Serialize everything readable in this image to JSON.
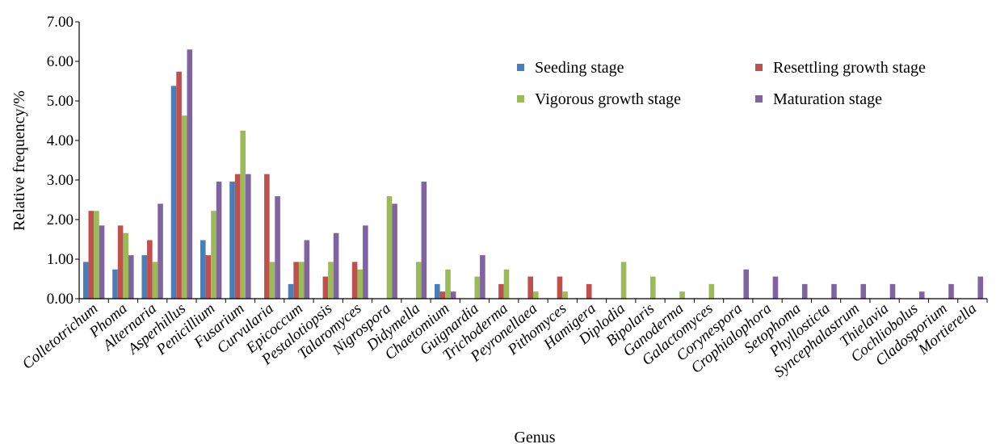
{
  "chart_data": {
    "type": "bar",
    "xlabel": "Genus",
    "ylabel": "Relative frequency/%",
    "ylim": [
      0,
      7
    ],
    "yticks": [
      "0.00",
      "1.00",
      "2.00",
      "3.00",
      "4.00",
      "5.00",
      "6.00",
      "7.00"
    ],
    "grid": false,
    "legend_position": "top-right",
    "categories": [
      "Colletotrichum",
      "Phoma",
      "Alternaria",
      "Asperhillus",
      "Penicillium",
      "Fusarium",
      "Curvularia",
      "Epicoccum",
      "Pestalotiopsis",
      "Talaromyces",
      "Nigrospora",
      "Didymella",
      "Chaetomium",
      "Guignardia",
      "Trichoderma",
      "Peyronellaea",
      "Pithomyces",
      "Hamigera",
      "Diplodia",
      "Bipolaris",
      "Ganoderma",
      "Galactomyces",
      "Corynespora",
      "Crophialophora",
      "Setophoma",
      "Phyllosticta",
      "Syncephalastrum",
      "Thielavia",
      "Cochliobolus",
      "Cladosporium",
      "Mortierella"
    ],
    "series": [
      {
        "name": "Seeding stage",
        "color": "#4a7ebb",
        "values": [
          0.93,
          0.74,
          1.1,
          5.38,
          1.48,
          2.96,
          0,
          0.37,
          0,
          0,
          0,
          0,
          0.37,
          0,
          0,
          0,
          0,
          0,
          0,
          0,
          0,
          0,
          0,
          0,
          0,
          0,
          0,
          0,
          0,
          0,
          0
        ]
      },
      {
        "name": "Resettling growth stage",
        "color": "#c0504d",
        "values": [
          2.22,
          1.85,
          1.48,
          5.74,
          1.1,
          3.15,
          3.15,
          0.93,
          0.56,
          0.93,
          0,
          0,
          0.18,
          0,
          0.37,
          0.56,
          0.56,
          0.37,
          0,
          0,
          0,
          0,
          0,
          0,
          0,
          0,
          0,
          0,
          0,
          0,
          0
        ]
      },
      {
        "name": "Vigorous growth stage",
        "color": "#9bbb59",
        "values": [
          2.22,
          1.66,
          0.93,
          4.63,
          2.22,
          4.25,
          0.93,
          0.93,
          0.93,
          0.74,
          2.59,
          0.93,
          0.74,
          0.56,
          0.74,
          0.18,
          0.18,
          0,
          0.93,
          0.56,
          0.18,
          0.37,
          0,
          0,
          0,
          0,
          0,
          0,
          0,
          0,
          0
        ]
      },
      {
        "name": "Maturation stage",
        "color": "#8064a2",
        "values": [
          1.85,
          1.1,
          2.4,
          6.3,
          2.96,
          3.15,
          2.59,
          1.48,
          1.66,
          1.85,
          2.4,
          2.96,
          0.18,
          1.1,
          0,
          0,
          0,
          0,
          0,
          0,
          0,
          0,
          0.74,
          0.56,
          0.37,
          0.37,
          0.37,
          0.37,
          0.18,
          0.37,
          0.56
        ]
      }
    ]
  }
}
